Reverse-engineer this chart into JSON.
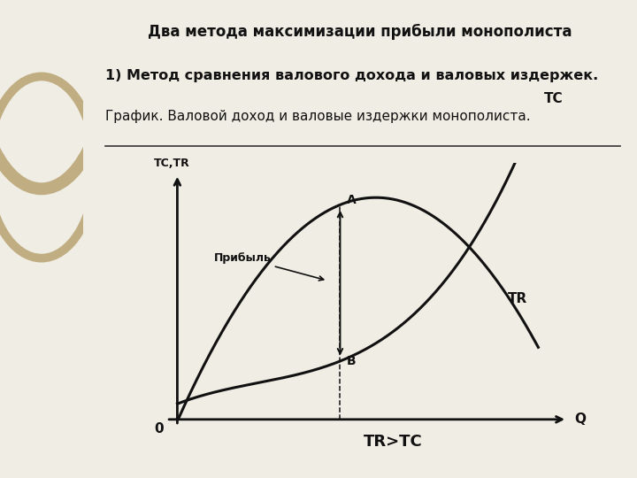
{
  "title": "Два метода максимизации прибыли монополиста",
  "subtitle1": "1) Метод сравнения валового дохода и валовых издержек.",
  "subtitle2": "График. Валовой доход и валовые издержки монополиста.",
  "label_TC": "TC",
  "label_TR": "TR",
  "label_TCTR": "TC,TR",
  "label_Q": "Q",
  "label_0": "0",
  "label_A": "A",
  "label_B": "B",
  "label_pribyl": "Прибыль",
  "label_formula": "TR>TC",
  "bg_color_left": "#d4c9a8",
  "bg_color_main": "#f0ede4",
  "line_color": "#111111"
}
